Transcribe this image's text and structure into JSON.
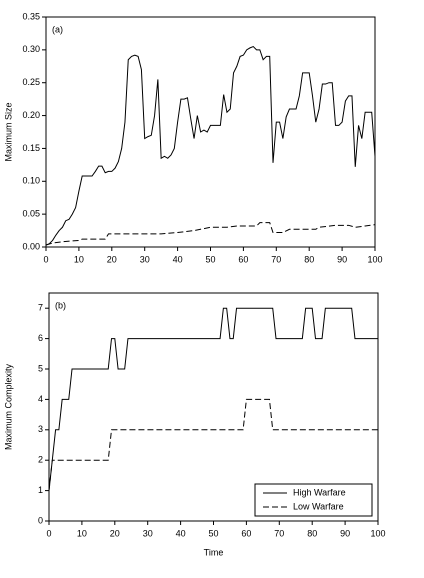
{
  "chart_data": [
    {
      "type": "line",
      "title": "(a)",
      "ylabel": "Maximum Size",
      "xlim": [
        0,
        100
      ],
      "xticks": [
        0,
        10,
        20,
        30,
        40,
        50,
        60,
        70,
        80,
        90,
        100
      ],
      "ylim": [
        0,
        0.35
      ],
      "yticks": [
        {
          "value": 0,
          "label": "0.00"
        },
        {
          "value": 0.05,
          "label": "0.05"
        },
        {
          "value": 0.1,
          "label": "0.10"
        },
        {
          "value": 0.15,
          "label": "0.15"
        },
        {
          "value": 0.2,
          "label": "0.20"
        },
        {
          "value": 0.25,
          "label": "0.25"
        },
        {
          "value": 0.3,
          "label": "0.30"
        },
        {
          "value": 0.35,
          "label": "0.35"
        }
      ],
      "series": [
        {
          "color": "#000000",
          "style": "solid",
          "x": [
            0,
            1,
            2,
            3,
            4,
            5,
            6,
            7,
            8,
            9,
            10,
            11,
            12,
            13,
            14,
            15,
            16,
            17,
            18,
            19,
            20,
            21,
            22,
            23,
            24,
            25,
            26,
            27,
            28,
            29,
            30,
            31,
            32,
            33,
            34,
            35,
            36,
            37,
            38,
            39,
            40,
            41,
            42,
            43,
            44,
            45,
            46,
            47,
            48,
            49,
            50,
            51,
            52,
            53,
            54,
            55,
            56,
            57,
            58,
            59,
            60,
            61,
            62,
            63,
            64,
            65,
            66,
            67,
            68,
            69,
            70,
            71,
            72,
            73,
            74,
            75,
            76,
            77,
            78,
            79,
            80,
            81,
            82,
            83,
            84,
            85,
            86,
            87,
            88,
            89,
            90,
            91,
            92,
            93,
            94,
            95,
            96,
            97,
            98,
            99,
            100
          ],
          "values": [
            0.003,
            0.005,
            0.01,
            0.018,
            0.025,
            0.03,
            0.04,
            0.042,
            0.05,
            0.06,
            0.085,
            0.108,
            0.108,
            0.108,
            0.108,
            0.115,
            0.123,
            0.123,
            0.113,
            0.115,
            0.115,
            0.12,
            0.13,
            0.15,
            0.19,
            0.285,
            0.29,
            0.292,
            0.29,
            0.27,
            0.165,
            0.168,
            0.17,
            0.2,
            0.255,
            0.135,
            0.138,
            0.135,
            0.14,
            0.15,
            0.19,
            0.225,
            0.225,
            0.227,
            0.195,
            0.165,
            0.2,
            0.175,
            0.178,
            0.175,
            0.185,
            0.185,
            0.185,
            0.185,
            0.232,
            0.205,
            0.21,
            0.265,
            0.275,
            0.29,
            0.292,
            0.3,
            0.303,
            0.305,
            0.3,
            0.3,
            0.285,
            0.29,
            0.29,
            0.128,
            0.19,
            0.19,
            0.165,
            0.198,
            0.21,
            0.21,
            0.21,
            0.23,
            0.265,
            0.265,
            0.265,
            0.23,
            0.19,
            0.21,
            0.248,
            0.248,
            0.25,
            0.25,
            0.185,
            0.185,
            0.19,
            0.222,
            0.23,
            0.23,
            0.122,
            0.185,
            0.165,
            0.205,
            0.205,
            0.205,
            0.138
          ]
        },
        {
          "color": "#000000",
          "style": "dashed",
          "x": [
            0,
            2,
            5,
            10,
            11,
            18,
            19,
            35,
            40,
            45,
            50,
            55,
            58,
            64,
            65,
            68,
            69,
            72,
            74,
            82,
            83,
            88,
            92,
            94,
            97,
            100
          ],
          "values": [
            0.003,
            0.006,
            0.008,
            0.01,
            0.012,
            0.012,
            0.02,
            0.02,
            0.022,
            0.025,
            0.03,
            0.03,
            0.032,
            0.032,
            0.037,
            0.037,
            0.022,
            0.022,
            0.027,
            0.027,
            0.03,
            0.033,
            0.033,
            0.03,
            0.032,
            0.034
          ]
        }
      ]
    },
    {
      "type": "line",
      "title": "(b)",
      "ylabel": "Maximum Complexity",
      "xlabel": "Time",
      "xlim": [
        0,
        100
      ],
      "xticks": [
        0,
        10,
        20,
        30,
        40,
        50,
        60,
        70,
        80,
        90,
        100
      ],
      "ylim": [
        0,
        7.5
      ],
      "yticks": [
        0,
        1,
        2,
        3,
        4,
        5,
        6,
        7
      ],
      "legend": "lower right",
      "series": [
        {
          "name": "High Warfare",
          "color": "#000000",
          "style": "solid",
          "x": [
            0,
            1,
            2,
            3,
            4,
            6,
            7,
            18,
            19,
            20,
            21,
            23,
            24,
            52,
            53,
            54,
            55,
            56,
            57,
            68,
            69,
            77,
            78,
            80,
            81,
            83,
            84,
            92,
            93,
            100
          ],
          "values": [
            1,
            2,
            3,
            3,
            4,
            4,
            5,
            5,
            6,
            6,
            5,
            5,
            6,
            6,
            7,
            7,
            6,
            6,
            7,
            7,
            6,
            6,
            7,
            7,
            6,
            6,
            7,
            7,
            6,
            6
          ]
        },
        {
          "name": "Low Warfare",
          "color": "#000000",
          "style": "dashed",
          "x": [
            0,
            1,
            18,
            19,
            59,
            60,
            67,
            68,
            100
          ],
          "values": [
            1,
            2,
            2,
            3,
            3,
            4,
            4,
            3,
            3
          ]
        }
      ]
    }
  ]
}
